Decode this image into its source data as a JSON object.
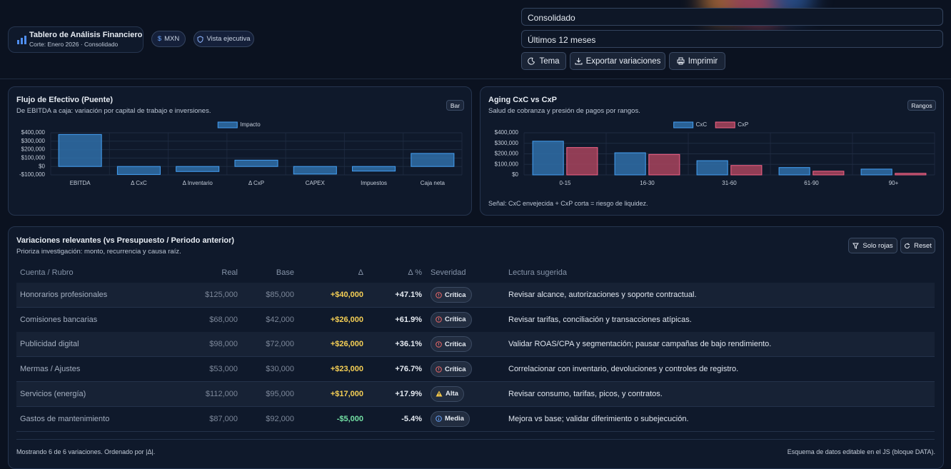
{
  "header": {
    "title": "Tablero de Análisis Financiero",
    "subtitle": "Corte: Enero 2026 · Consolidado",
    "chips": [
      "MXN",
      "Vista ejecutiva"
    ],
    "selects": [
      "Consolidado",
      "Últimos 12 meses"
    ],
    "buttons": [
      "Tema",
      "Exportar variaciones",
      "Imprimir"
    ]
  },
  "cashflow_panel": {
    "title": "Flujo de Efectivo (Puente)",
    "subtitle": "De EBITDA a caja: variación por capital de trabajo e inversiones.",
    "tag": "Bar",
    "chart": {
      "type": "bar",
      "categories": [
        "EBITDA",
        "Δ CxC",
        "Δ Inventario",
        "Δ CxP",
        "CAPEX",
        "Impuestos",
        "Caja neta"
      ],
      "series": [
        {
          "name": "Impacto",
          "color": "#2f6ea8",
          "values": [
            380000,
            -95000,
            -60000,
            75000,
            -90000,
            -55000,
            155000
          ]
        }
      ],
      "ylim": [
        -100000,
        400000
      ],
      "yticks": [
        {
          "value": -100000,
          "label": "-$100,000"
        },
        {
          "value": 0,
          "label": "$0"
        },
        {
          "value": 100000,
          "label": "$100,000"
        },
        {
          "value": 200000,
          "label": "$200,000"
        },
        {
          "value": 300000,
          "label": "$300,000"
        },
        {
          "value": 400000,
          "label": "$400,000"
        }
      ],
      "grid": true
    }
  },
  "aging_panel": {
    "title": "Aging CxC vs CxP",
    "subtitle": "Salud de cobranza y presión de pagos por rangos.",
    "tag": "Rangos",
    "note": "Señal: CxC envejecida + CxP corta = riesgo de liquidez.",
    "chart": {
      "type": "bar",
      "categories": [
        "0-15",
        "16-30",
        "31-60",
        "61-90",
        "90+"
      ],
      "series": [
        {
          "name": "CxC",
          "color": "#2f6ea8",
          "values": [
            320000,
            210000,
            135000,
            70000,
            55000
          ]
        },
        {
          "name": "CxP",
          "color": "#a8445d",
          "values": [
            260000,
            195000,
            90000,
            35000,
            15000
          ]
        }
      ],
      "ylim": [
        0,
        400000
      ],
      "yticks": [
        {
          "value": 0,
          "label": "$0"
        },
        {
          "value": 100000,
          "label": "$100,000"
        },
        {
          "value": 200000,
          "label": "$200,000"
        },
        {
          "value": 300000,
          "label": "$300,000"
        },
        {
          "value": 400000,
          "label": "$400,000"
        }
      ],
      "grid": true
    }
  },
  "table": {
    "title": "Variaciones relevantes (vs Presupuesto / Periodo anterior)",
    "subtitle": "Prioriza investigación: monto, recurrencia y causa raíz.",
    "buttons": [
      "Solo rojas",
      "Reset"
    ],
    "columns": [
      "Cuenta / Rubro",
      "Real",
      "Base",
      "Δ",
      "Δ %",
      "Severidad",
      "Lectura sugerida"
    ],
    "rows": [
      [
        "Honorarios profesionales",
        "$125,000",
        "$85,000",
        "+$40,000",
        "+47.1%",
        "Crítica",
        "Revisar alcance, autorizaciones y soporte contractual."
      ],
      [
        "Comisiones bancarias",
        "$68,000",
        "$42,000",
        "+$26,000",
        "+61.9%",
        "Crítica",
        "Revisar tarifas, conciliación y transacciones atípicas."
      ],
      [
        "Publicidad digital",
        "$98,000",
        "$72,000",
        "+$26,000",
        "+36.1%",
        "Crítica",
        "Validar ROAS/CPA y segmentación; pausar campañas de bajo rendimiento."
      ],
      [
        "Mermas / Ajustes",
        "$53,000",
        "$30,000",
        "+$23,000",
        "+76.7%",
        "Crítica",
        "Correlacionar con inventario, devoluciones y controles de registro."
      ],
      [
        "Servicios (energía)",
        "$112,000",
        "$95,000",
        "+$17,000",
        "+17.9%",
        "Alta",
        "Revisar consumo, tarifas, picos, y contratos."
      ],
      [
        "Gastos de mantenimiento",
        "$87,000",
        "$92,000",
        "-$5,000",
        "-5.4%",
        "Media",
        "Mejora vs base; validar diferimiento o subejecución."
      ]
    ]
  },
  "footer": {
    "left": "Mostrando 6 de 6 variaciones. Ordenado por |Δ|.",
    "right": "Esquema de datos editable en el JS (bloque DATA)."
  }
}
